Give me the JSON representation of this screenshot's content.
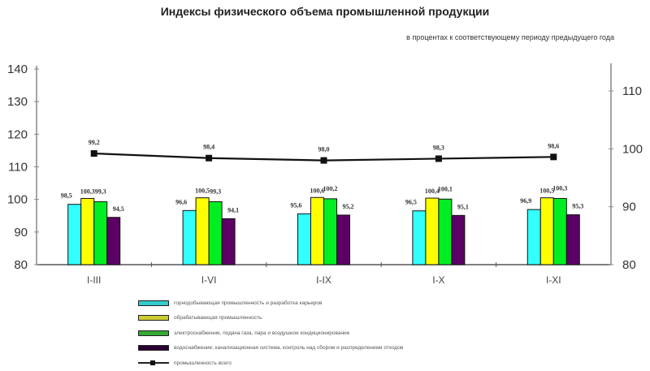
{
  "title": "Индексы физического объема промышленной продукции",
  "subtitle": "в процентах к соответствующему периоду предыдущего года",
  "colors": {
    "mining": "#33FFFF",
    "manufacturing": "#FFFF00",
    "electricity": "#00EE22",
    "water": "#5C0066",
    "total": "#111111"
  },
  "chart_data": {
    "type": "bar",
    "title": "Индексы физического объема промышленной продукции",
    "subtitle": "в процентах к соответствующему периоду предыдущего года",
    "categories": [
      "I-III",
      "I-VI",
      "I-IX",
      "I-X",
      "I-XI"
    ],
    "series": [
      {
        "name": "горнодобывающая промышленность и разработка карьеров",
        "type": "bar",
        "axis": "left",
        "color": "#33FFFF",
        "values": [
          98.5,
          96.6,
          95.6,
          96.5,
          96.9
        ],
        "labels": [
          "98,5",
          "96,6",
          "95,6",
          "96,5",
          "96,9"
        ]
      },
      {
        "name": "обрабатывающая промышленность",
        "type": "bar",
        "axis": "left",
        "color": "#FFFF00",
        "values": [
          100.3,
          100.5,
          100.6,
          100.4,
          100.5
        ],
        "labels": [
          "100,3",
          "100,5",
          "100,6",
          "100,4",
          "100,5"
        ]
      },
      {
        "name": "электроснабжение, подача газа, пара и воздушное кондиционирование",
        "type": "bar",
        "axis": "left",
        "color": "#00EE22",
        "values": [
          99.3,
          99.3,
          100.2,
          100.1,
          100.3
        ],
        "labels": [
          "99,3",
          "99,3",
          "100,2",
          "100,1",
          "100,3"
        ]
      },
      {
        "name": "водоснабжение; канализационная система, контроль над сбором и распределением отходов",
        "type": "bar",
        "axis": "left",
        "color": "#5C0066",
        "values": [
          94.5,
          94.1,
          95.2,
          95.1,
          95.3
        ],
        "labels": [
          "94,5",
          "94,1",
          "95,2",
          "95,1",
          "95,3"
        ]
      },
      {
        "name": "промышленность всего",
        "type": "line",
        "axis": "right",
        "color": "#111111",
        "values": [
          99.2,
          98.4,
          98.0,
          98.3,
          98.6
        ],
        "labels": [
          "99,2",
          "98,4",
          "98,0",
          "98,3",
          "98,6"
        ]
      }
    ],
    "y_left": {
      "ylim": [
        80,
        140
      ],
      "ticks": [
        80,
        90,
        100,
        110,
        120,
        130,
        140
      ]
    },
    "y_right": {
      "ylim": [
        80,
        112
      ],
      "ticks": [
        80,
        90,
        100,
        110
      ]
    },
    "xlabel": "",
    "ylabel": "",
    "grid": false,
    "legend_position": "bottom"
  },
  "legend": [
    {
      "label": "горнодобывающая промышленность и разработка карьеров",
      "kind": "bar",
      "color": "#33CCCC"
    },
    {
      "label": "обрабатывающая промышленность",
      "kind": "bar",
      "color": "#CCCC33"
    },
    {
      "label": "электроснабжение, подача газа, пара и воздушное кондиционирование",
      "kind": "bar",
      "color": "#33AA33"
    },
    {
      "label": "водоснабжение; канализационная система, контроль над сбором и распределением отходов",
      "kind": "bar",
      "color": "#2A0033"
    },
    {
      "label": "промышленность всего",
      "kind": "line",
      "color": "#111111"
    }
  ]
}
